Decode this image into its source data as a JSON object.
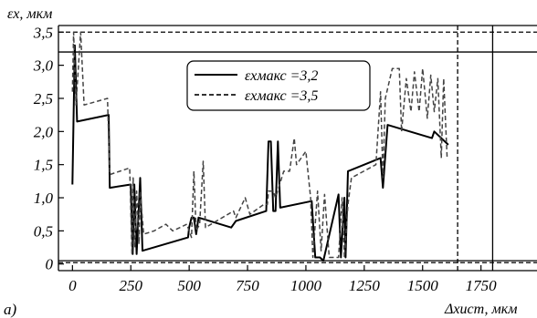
{
  "chart_data": {
    "type": "line",
    "panel_label": "а)",
    "ylabel": "εx, мкм",
    "xlabel": "Δxист, мкм",
    "xlim": [
      -60,
      1990
    ],
    "ylim": [
      -0.1,
      3.6
    ],
    "x_ticks": [
      0,
      250,
      500,
      750,
      1000,
      1250,
      1500,
      1750
    ],
    "x_tick_labels": [
      "0",
      "250",
      "500",
      "750",
      "1000",
      "1250",
      "1500",
      "1750"
    ],
    "y_ticks": [
      0,
      0.5,
      1.0,
      1.5,
      2.0,
      2.5,
      3.0,
      3.5
    ],
    "y_tick_labels": [
      "0",
      "0,5",
      "1,0",
      "1,5",
      "2,0",
      "2,5",
      "3,0",
      "3,5"
    ],
    "grid": false,
    "legend_position": "top-center",
    "reference_lines": [
      {
        "orientation": "horizontal",
        "y": 3.2,
        "style": "solid"
      },
      {
        "orientation": "horizontal",
        "y": 3.5,
        "style": "dashed"
      },
      {
        "orientation": "horizontal",
        "y": 0.05,
        "style": "solid"
      },
      {
        "orientation": "horizontal",
        "y": 0.02,
        "style": "dashed"
      },
      {
        "orientation": "vertical",
        "x": 1650,
        "style": "dashed"
      },
      {
        "orientation": "vertical",
        "x": 1800,
        "style": "solid"
      }
    ],
    "series": [
      {
        "name": "εxмакс =3,2",
        "style": "solid",
        "color": "#000000",
        "points": [
          [
            0,
            1.2
          ],
          [
            10,
            3.3
          ],
          [
            20,
            2.15
          ],
          [
            155,
            2.25
          ],
          [
            160,
            1.15
          ],
          [
            250,
            1.2
          ],
          [
            258,
            0.15
          ],
          [
            265,
            1.2
          ],
          [
            275,
            0.15
          ],
          [
            290,
            1.3
          ],
          [
            300,
            0.2
          ],
          [
            495,
            0.4
          ],
          [
            500,
            0.55
          ],
          [
            510,
            0.7
          ],
          [
            520,
            0.7
          ],
          [
            530,
            0.45
          ],
          [
            540,
            0.7
          ],
          [
            680,
            0.55
          ],
          [
            700,
            0.65
          ],
          [
            830,
            0.8
          ],
          [
            840,
            1.85
          ],
          [
            850,
            1.85
          ],
          [
            860,
            0.8
          ],
          [
            870,
            0.8
          ],
          [
            880,
            1.85
          ],
          [
            890,
            0.85
          ],
          [
            1025,
            0.95
          ],
          [
            1040,
            0.1
          ],
          [
            1060,
            0.1
          ],
          [
            1075,
            0.05
          ],
          [
            1140,
            1.05
          ],
          [
            1150,
            0.1
          ],
          [
            1165,
            1.0
          ],
          [
            1170,
            0.1
          ],
          [
            1180,
            1.4
          ],
          [
            1320,
            1.6
          ],
          [
            1330,
            1.15
          ],
          [
            1350,
            2.1
          ],
          [
            1540,
            1.9
          ],
          [
            1550,
            2.0
          ],
          [
            1610,
            1.8
          ]
        ]
      },
      {
        "name": "εxмакс =3,5",
        "style": "dashed",
        "color": "#444444",
        "points": [
          [
            0,
            2.6
          ],
          [
            5,
            3.5
          ],
          [
            15,
            2.4
          ],
          [
            35,
            3.5
          ],
          [
            50,
            2.4
          ],
          [
            150,
            2.5
          ],
          [
            160,
            1.35
          ],
          [
            245,
            1.45
          ],
          [
            255,
            0.15
          ],
          [
            260,
            1.3
          ],
          [
            268,
            0.25
          ],
          [
            275,
            1.1
          ],
          [
            285,
            0.3
          ],
          [
            290,
            1.1
          ],
          [
            305,
            0.45
          ],
          [
            350,
            0.5
          ],
          [
            400,
            0.6
          ],
          [
            430,
            0.5
          ],
          [
            490,
            0.6
          ],
          [
            510,
            0.4
          ],
          [
            520,
            1.4
          ],
          [
            530,
            0.5
          ],
          [
            545,
            0.6
          ],
          [
            560,
            1.55
          ],
          [
            570,
            0.55
          ],
          [
            690,
            0.8
          ],
          [
            700,
            0.7
          ],
          [
            740,
            1.0
          ],
          [
            760,
            0.75
          ],
          [
            820,
            0.9
          ],
          [
            835,
            0.9
          ],
          [
            840,
            1.1
          ],
          [
            860,
            1.1
          ],
          [
            870,
            1.0
          ],
          [
            905,
            1.4
          ],
          [
            930,
            1.4
          ],
          [
            950,
            1.9
          ],
          [
            960,
            1.5
          ],
          [
            1000,
            1.7
          ],
          [
            1020,
            1.0
          ],
          [
            1030,
            0.1
          ],
          [
            1050,
            1.1
          ],
          [
            1065,
            0.2
          ],
          [
            1080,
            1.05
          ],
          [
            1100,
            0.1
          ],
          [
            1140,
            0.1
          ],
          [
            1155,
            1.0
          ],
          [
            1165,
            0.1
          ],
          [
            1180,
            0.9
          ],
          [
            1195,
            1.3
          ],
          [
            1300,
            1.5
          ],
          [
            1320,
            2.6
          ],
          [
            1330,
            1.3
          ],
          [
            1340,
            2.5
          ],
          [
            1370,
            2.95
          ],
          [
            1400,
            2.95
          ],
          [
            1410,
            2.0
          ],
          [
            1430,
            2.8
          ],
          [
            1450,
            2.3
          ],
          [
            1465,
            2.9
          ],
          [
            1485,
            2.3
          ],
          [
            1500,
            2.95
          ],
          [
            1520,
            2.2
          ],
          [
            1535,
            2.85
          ],
          [
            1550,
            2.3
          ],
          [
            1565,
            2.8
          ],
          [
            1580,
            1.6
          ],
          [
            1590,
            2.8
          ],
          [
            1605,
            1.6
          ]
        ]
      }
    ]
  }
}
